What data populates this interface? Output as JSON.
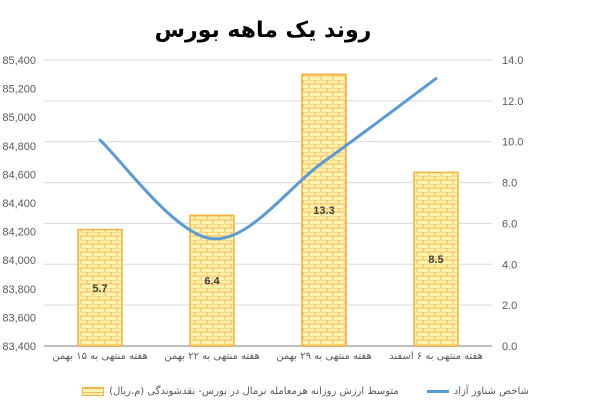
{
  "chart_data": {
    "type": "bar+line",
    "title": "روند یک ماهه بورس",
    "categories": [
      "هفته منتهی به ۱۵ بهمن",
      "هفته منتهی به ۲۲ بهمن",
      "هفته منتهی به ۲۹ بهمن",
      "هفته منتهی به ۶ اسفند"
    ],
    "series": [
      {
        "name": "متوسط ارزش روزانه هرمعامله نرمال در بورس- نقدشوندگی (م.ریال)",
        "type": "bar",
        "axis": "right",
        "values": [
          5.7,
          6.4,
          13.3,
          8.5
        ],
        "labels": [
          "5.7",
          "6.4",
          "13.3",
          "8.5"
        ],
        "color": "#F5B041",
        "fill": "brick-pattern"
      },
      {
        "name": "شاخص شناور آزاد",
        "type": "line",
        "axis": "left",
        "smooth": true,
        "values": [
          84840,
          84150,
          84690,
          85270
        ],
        "color": "#5B9BD5"
      }
    ],
    "left_axis": {
      "range": [
        83400,
        85400
      ],
      "ticks": [
        "83,400",
        "83,600",
        "83,800",
        "84,000",
        "84,200",
        "84,400",
        "84,600",
        "84,800",
        "85,000",
        "85,200",
        "85,400"
      ]
    },
    "right_axis": {
      "range": [
        0,
        14
      ],
      "ticks": [
        "0.0",
        "2.0",
        "4.0",
        "6.0",
        "8.0",
        "10.0",
        "12.0",
        "14.0"
      ]
    },
    "grid": "horizontal (right axis)",
    "legend": "bottom"
  }
}
